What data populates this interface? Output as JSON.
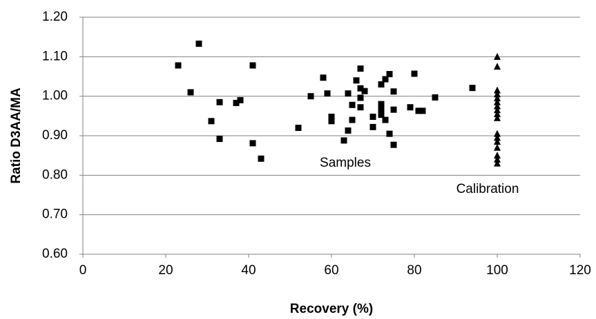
{
  "chart_data": {
    "type": "scatter",
    "x_label": "Recovery (%)",
    "y_label": "Ratio D3AA/MA",
    "annotations": [
      "Samples",
      "Calibration"
    ],
    "series": [
      {
        "name": "Samples",
        "color": "#000000",
        "marker": "square",
        "x": [
          23,
          26,
          28,
          31,
          33,
          33,
          37,
          38,
          41,
          41,
          43,
          52,
          55,
          58,
          59,
          60,
          60,
          63,
          64,
          64,
          65,
          65,
          66,
          67,
          67,
          67,
          67,
          68,
          70,
          70,
          72,
          72,
          72,
          72,
          73,
          73,
          74,
          74,
          75,
          75,
          75,
          79,
          80,
          81,
          82,
          85,
          94
        ],
        "values": [
          1.078,
          1.01,
          1.133,
          0.937,
          0.985,
          0.892,
          0.983,
          0.99,
          1.078,
          0.881,
          0.842,
          0.92,
          1.0,
          1.047,
          1.007,
          0.948,
          0.937,
          0.888,
          1.007,
          0.913,
          0.978,
          0.94,
          1.04,
          1.07,
          1.02,
          0.996,
          0.972,
          1.013,
          0.948,
          0.922,
          1.03,
          0.98,
          0.965,
          0.953,
          1.043,
          0.94,
          1.056,
          0.905,
          1.012,
          0.966,
          0.877,
          0.972,
          1.057,
          0.963,
          0.963,
          0.997,
          1.021
        ]
      },
      {
        "name": "Calibration",
        "color": "#000000",
        "marker": "triangle",
        "x": [
          100,
          100,
          100,
          100,
          100,
          100,
          100,
          100,
          100,
          100,
          100,
          100,
          100,
          100,
          100,
          100,
          100
        ],
        "values": [
          1.1,
          1.075,
          1.015,
          1.005,
          0.995,
          0.985,
          0.975,
          0.965,
          0.955,
          0.945,
          0.905,
          0.895,
          0.885,
          0.87,
          0.85,
          0.84,
          0.83
        ]
      }
    ],
    "xlim": [
      0,
      120
    ],
    "xticks": [
      0,
      20,
      40,
      60,
      80,
      100,
      120
    ],
    "ylim": [
      0.6,
      1.2
    ],
    "yticks": [
      {
        "value": 0.6,
        "label": "0.60"
      },
      {
        "value": 0.7,
        "label": "0.70"
      },
      {
        "value": 0.8,
        "label": "0.80"
      },
      {
        "value": 0.9,
        "label": "0.90"
      },
      {
        "value": 1.0,
        "label": "1.00"
      },
      {
        "value": 1.1,
        "label": "1.10"
      },
      {
        "value": 1.2,
        "label": "1.20"
      }
    ],
    "grid": true
  }
}
